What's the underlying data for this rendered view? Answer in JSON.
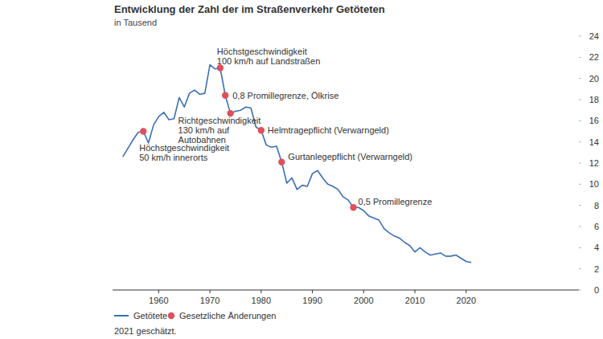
{
  "chart_data": {
    "type": "line",
    "title": "Entwicklung der Zahl der im Straßenverkehr Getöteten",
    "subtitle": "in Tausend",
    "note": "2021 geschätzt.",
    "x": [
      1953,
      1954,
      1955,
      1956,
      1957,
      1958,
      1959,
      1960,
      1961,
      1962,
      1963,
      1964,
      1965,
      1966,
      1967,
      1968,
      1969,
      1970,
      1971,
      1972,
      1973,
      1974,
      1975,
      1976,
      1977,
      1978,
      1979,
      1980,
      1981,
      1982,
      1983,
      1984,
      1985,
      1986,
      1987,
      1988,
      1989,
      1990,
      1991,
      1992,
      1993,
      1994,
      1995,
      1996,
      1997,
      1998,
      1999,
      2000,
      2001,
      2002,
      2003,
      2004,
      2005,
      2006,
      2007,
      2008,
      2009,
      2010,
      2011,
      2012,
      2013,
      2014,
      2015,
      2016,
      2017,
      2018,
      2019,
      2020,
      2021
    ],
    "series": [
      {
        "name": "Getötete",
        "color": "#3b6fb6",
        "values": [
          12.6,
          13.4,
          14.2,
          14.9,
          15.0,
          13.9,
          15.6,
          16.4,
          16.8,
          16.1,
          16.2,
          18.2,
          17.3,
          18.6,
          18.9,
          18.5,
          18.6,
          21.3,
          20.9,
          21.0,
          18.4,
          16.7,
          16.9,
          17.0,
          17.3,
          17.2,
          15.4,
          15.1,
          13.7,
          13.5,
          13.6,
          12.1,
          10.1,
          10.6,
          9.5,
          9.9,
          9.8,
          11.0,
          11.3,
          10.6,
          10.0,
          9.8,
          9.5,
          8.8,
          8.5,
          7.8,
          7.8,
          7.5,
          7.0,
          6.8,
          6.6,
          5.8,
          5.4,
          5.1,
          4.9,
          4.5,
          4.2,
          3.6,
          4.0,
          3.6,
          3.3,
          3.4,
          3.5,
          3.2,
          3.2,
          3.3,
          3.0,
          2.7,
          2.6
        ]
      }
    ],
    "annotations_name": "Gesetzliche Änderungen",
    "annotations_color": "#e0505a",
    "annotations": [
      {
        "x": 1957,
        "y": 15.0,
        "label": [
          "Höchstgeschwindigkeit",
          "50 km/h innerorts"
        ]
      },
      {
        "x": 1972,
        "y": 21.0,
        "label": [
          "Höchstgeschwindigkeit",
          "100 km/h auf Landstraßen"
        ]
      },
      {
        "x": 1973,
        "y": 18.4,
        "label": [
          "0,8 Promillegrenze, Ölkrise"
        ]
      },
      {
        "x": 1974,
        "y": 16.7,
        "label": [
          "Richtgeschwindigkeit",
          "130 km/h auf",
          "Autobahnen"
        ]
      },
      {
        "x": 1980,
        "y": 15.1,
        "label": [
          "Helmtragepflicht (Verwarngeld)"
        ]
      },
      {
        "x": 1984,
        "y": 12.1,
        "label": [
          "Gurtanlegepflicht (Verwarngeld)"
        ]
      },
      {
        "x": 1998,
        "y": 7.8,
        "label": [
          "0,5 Promillegrenze"
        ]
      }
    ],
    "xlim": [
      1951,
      2042
    ],
    "xticks": [
      1960,
      1970,
      1980,
      1990,
      2000,
      2010,
      2020
    ],
    "ylim": [
      0,
      24
    ],
    "yticks": [
      0,
      2,
      4,
      6,
      8,
      10,
      12,
      14,
      16,
      18,
      20,
      22,
      24
    ],
    "grid": false
  }
}
